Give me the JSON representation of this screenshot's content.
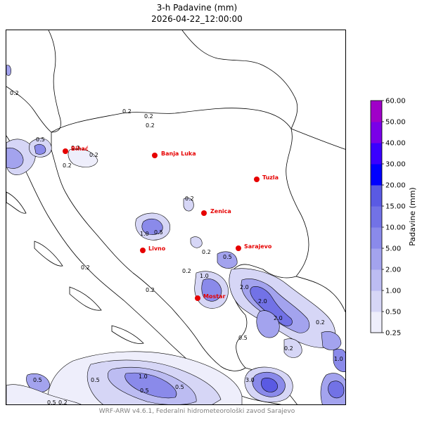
{
  "title": {
    "line1": "3-h Padavine (mm)",
    "line2": "2026-04-22_12:00:00"
  },
  "footer": "WRF-ARW v4.6.1, Federalni hidrometeorološki zavod Sarajevo",
  "colorbar": {
    "label": "Padavine (mm)",
    "levels": [
      "0.25",
      "0.50",
      "1.00",
      "2.00",
      "5.00",
      "10.00",
      "15.00",
      "20.00",
      "30.00",
      "40.00",
      "50.00",
      "60.00"
    ],
    "colors": [
      "#eeeefb",
      "#d6d6f6",
      "#bcbcf2",
      "#a3a3ee",
      "#8a8aea",
      "#7272e6",
      "#5a5ae3",
      "#0000ff",
      "#3a00ff",
      "#7a00e8",
      "#a000c8"
    ]
  },
  "cities": [
    {
      "name": "Bihać",
      "marker_color": "#e60000"
    },
    {
      "name": "Banja Luka",
      "marker_color": "#e60000"
    },
    {
      "name": "Tuzla",
      "marker_color": "#e60000"
    },
    {
      "name": "Zenica",
      "marker_color": "#e60000"
    },
    {
      "name": "Livno",
      "marker_color": "#e60000"
    },
    {
      "name": "Sarajevo",
      "marker_color": "#e60000"
    },
    {
      "name": "Mostar",
      "marker_color": "#e60000"
    }
  ],
  "contour_labels": [
    "0.2",
    "0.5",
    "1.0",
    "2.0",
    "3.0"
  ]
}
